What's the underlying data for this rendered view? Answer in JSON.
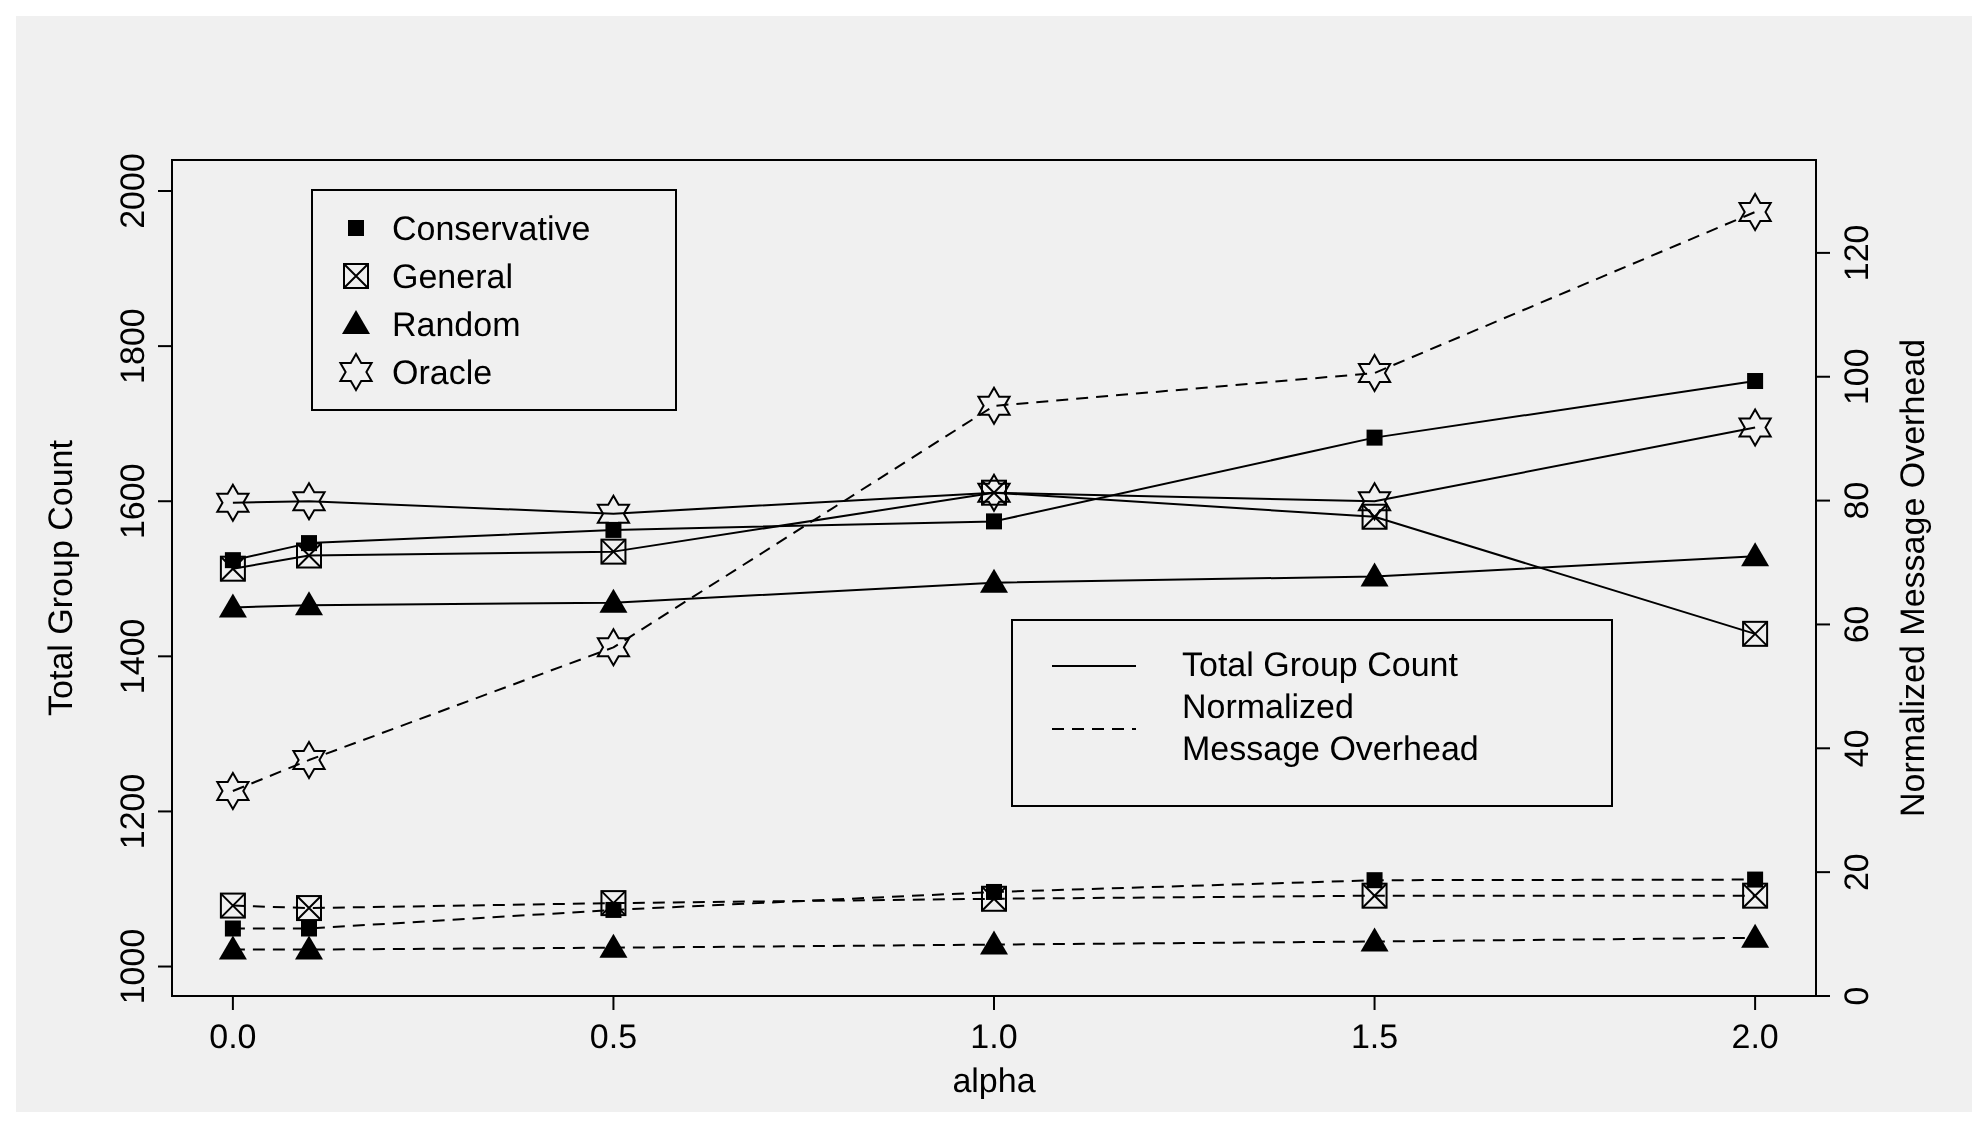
{
  "chart_data": {
    "type": "line",
    "xlabel": "alpha",
    "ylabel": "Total Group Count",
    "y2label": "Normalized Message Overhead",
    "x": [
      0,
      0.1,
      0.5,
      1.0,
      1.5,
      2.0
    ],
    "xlim": [
      -0.08,
      2.08
    ],
    "xticks": [
      {
        "value": 0,
        "label": "0.0"
      },
      {
        "value": 0.5,
        "label": "0.5"
      },
      {
        "value": 1,
        "label": "1.0"
      },
      {
        "value": 1.5,
        "label": "1.5"
      },
      {
        "value": 2,
        "label": "2.0"
      }
    ],
    "ylim": [
      962,
      2040
    ],
    "yticks": [
      1000,
      1200,
      1400,
      1600,
      1800,
      2000
    ],
    "y2lim": [
      0,
      135
    ],
    "y2ticks": [
      0,
      20,
      40,
      60,
      80,
      100,
      120
    ],
    "legend": "top left",
    "annotations": [
      "Total Group Count",
      "Normalized Message Overhead"
    ],
    "series": [
      {
        "name": "Conservative",
        "color": "#000000",
        "marker": "square",
        "line_style": "solid",
        "axis": "y",
        "values": [
          1524,
          1546,
          1563,
          1574,
          1682,
          1755
        ]
      },
      {
        "name": "General",
        "color": "#000000",
        "marker": "square",
        "line_style": "solid",
        "axis": "y",
        "values": [
          1513,
          1530,
          1535,
          1611,
          1580,
          1429
        ]
      },
      {
        "name": "Random",
        "color": "#000000",
        "marker": "triangle",
        "line_style": "solid",
        "axis": "y",
        "values": [
          1463,
          1466,
          1469,
          1495,
          1503,
          1529
        ]
      },
      {
        "name": "Oracle",
        "color": "#000000",
        "marker": "cross",
        "line_style": "solid",
        "axis": "y",
        "values": [
          1598,
          1600,
          1584,
          1611,
          1600,
          1695
        ]
      },
      {
        "color": "#000000",
        "marker": "square",
        "line_style": "dashed",
        "axis": "y2",
        "values": [
          10.9,
          10.9,
          13.9,
          16.8,
          18.7,
          18.8
        ]
      },
      {
        "color": "#000000",
        "marker": "square",
        "line_style": "dashed",
        "axis": "y2",
        "values": [
          14.6,
          14.2,
          15.0,
          15.7,
          16.2,
          16.2
        ]
      },
      {
        "color": "#000000",
        "marker": "triangle",
        "line_style": "dashed",
        "axis": "y2",
        "values": [
          7.5,
          7.5,
          7.8,
          8.3,
          8.8,
          9.4
        ]
      },
      {
        "color": "#000000",
        "marker": "cross",
        "line_style": "dashed",
        "axis": "y2",
        "values": [
          33.1,
          38.1,
          56.3,
          95.3,
          100.6,
          126.6
        ]
      }
    ]
  }
}
